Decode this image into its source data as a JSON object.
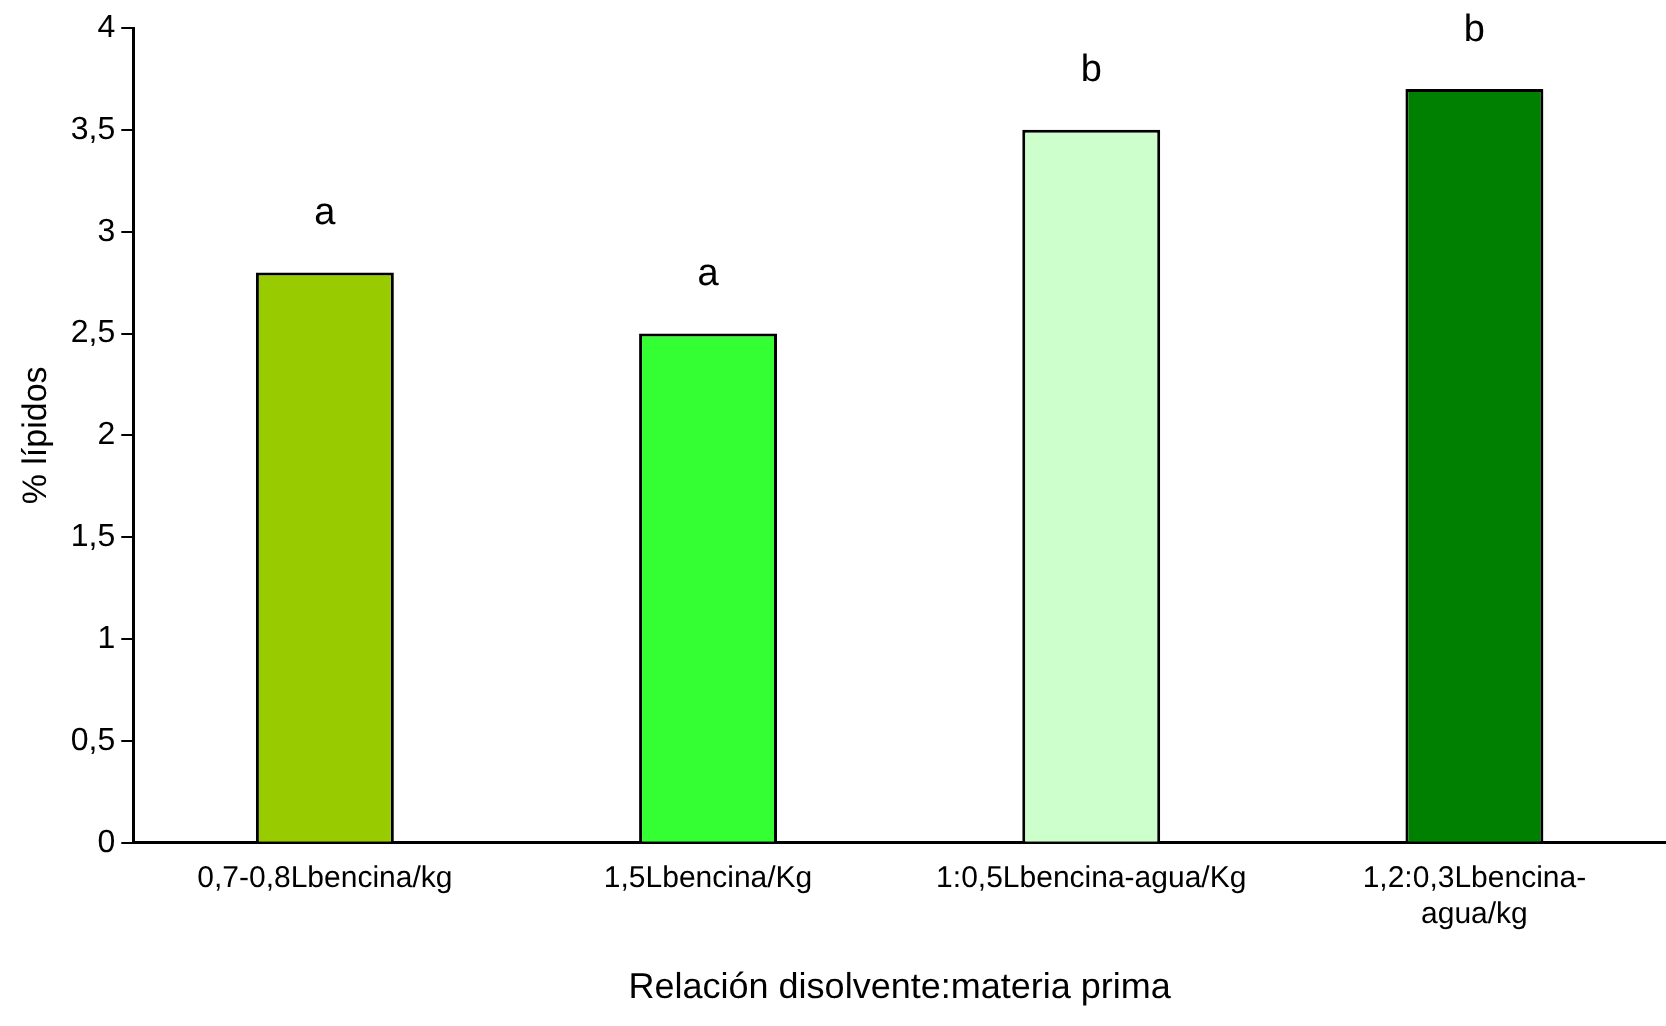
{
  "chart_data": {
    "type": "bar",
    "xlabel": "Relación disolvente:materia prima",
    "ylabel": "% lípidos",
    "categories": [
      "0,7-0,8Lbencina/kg",
      "1,5Lbencina/Kg",
      "1:0,5Lbencina-agua/Kg",
      "1,2:0,3Lbencina-agua/kg"
    ],
    "values": [
      2.8,
      2.5,
      3.5,
      3.7
    ],
    "colors": [
      "#99cc00",
      "#33ff33",
      "#ccffcc",
      "#008000"
    ],
    "ylim": [
      0,
      4
    ],
    "yticks": [
      0,
      {
        "value": 0.5,
        "label": "0,5"
      },
      1,
      {
        "value": 1.5,
        "label": "1,5"
      },
      2,
      {
        "value": 2.5,
        "label": "2,5"
      },
      3,
      {
        "value": 3.5,
        "label": "3,5"
      },
      4
    ],
    "grid": false,
    "legend": false,
    "annotations": [
      {
        "text": "a",
        "x": "0,7-0,8Lbencina/kg",
        "y": 2.8
      },
      {
        "text": "a",
        "x": "1,5Lbencina/Kg",
        "y": 2.5
      },
      {
        "text": "b",
        "x": "1:0,5Lbencina-agua/Kg",
        "y": 3.5
      },
      {
        "text": "b",
        "x": "1,2:0,3Lbencina-agua/kg",
        "y": 3.7
      }
    ]
  }
}
